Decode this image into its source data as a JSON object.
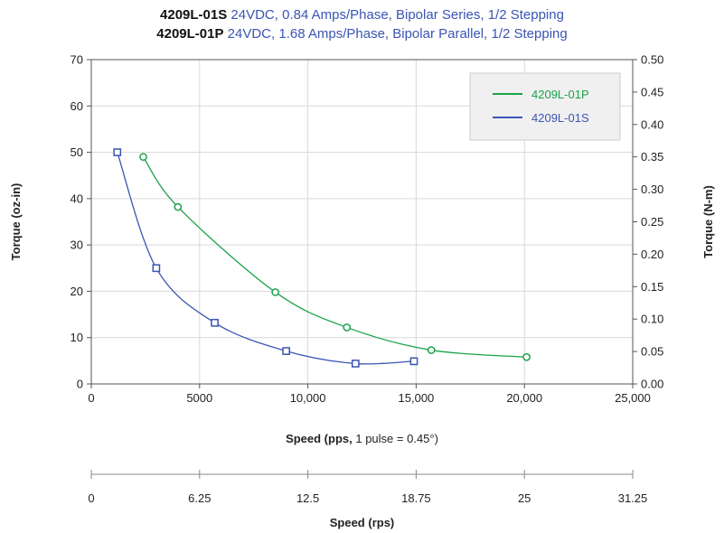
{
  "header": {
    "line1": {
      "model": "4209L-01S",
      "desc": "24VDC, 0.84 Amps/Phase, Bipolar Series, 1/2 Stepping"
    },
    "line2": {
      "model": "4209L-01P",
      "desc": "24VDC, 1.68 Amps/Phase, Bipolar Parallel, 1/2 Stepping"
    }
  },
  "colors": {
    "series_p": "#1aa34a",
    "series_s": "#3a55b4",
    "grid": "#d9d9d9",
    "axis": "#555555",
    "legend_bg": "#f0f0f0",
    "legend_border": "#cccccc"
  },
  "chart_data": {
    "type": "line",
    "xlabel": "Speed (pps, 1 pulse = 0.45°)",
    "xlabel_parts": {
      "bold_prefix": "Speed (pps,",
      "normal_rest": " 1 pulse = 0.45°)"
    },
    "ylabel_left": "Torque (oz-in)",
    "ylabel_right": "Torque (N-m)",
    "xlim": [
      0,
      25000
    ],
    "ylim": [
      0,
      70
    ],
    "y2lim": [
      0,
      0.5
    ],
    "x_ticks": [
      "0",
      "5000",
      "10,000",
      "15,000",
      "20,000",
      "25,000"
    ],
    "x_tick_values": [
      0,
      5000,
      10000,
      15000,
      20000,
      25000
    ],
    "y_ticks": [
      "0",
      "10",
      "20",
      "30",
      "40",
      "50",
      "60",
      "70"
    ],
    "y_tick_values": [
      0,
      10,
      20,
      30,
      40,
      50,
      60,
      70
    ],
    "y2_ticks": [
      "0.00",
      "0.05",
      "0.10",
      "0.15",
      "0.20",
      "0.25",
      "0.30",
      "0.35",
      "0.40",
      "0.45",
      "0.50"
    ],
    "grid": true,
    "legend_position": "top-right",
    "series": [
      {
        "name": "4209L-01P",
        "marker": "circle",
        "color_key": "series_p",
        "x": [
          2400,
          4000,
          8500,
          11800,
          15700,
          20100
        ],
        "y": [
          49,
          38.2,
          19.8,
          12.2,
          7.3,
          5.8
        ]
      },
      {
        "name": "4209L-01S",
        "marker": "square",
        "color_key": "series_s",
        "x": [
          1200,
          3000,
          5700,
          9000,
          12200,
          14900
        ],
        "y": [
          50,
          25,
          13.2,
          7.1,
          4.4,
          4.9
        ]
      }
    ],
    "secondary_axis": {
      "xlabel": "Speed (rps)",
      "ticks": [
        "0",
        "6.25",
        "12.5",
        "18.75",
        "25",
        "31.25"
      ],
      "tick_values": [
        0,
        6.25,
        12.5,
        18.75,
        25,
        31.25
      ],
      "range": [
        0,
        31.25
      ]
    }
  }
}
